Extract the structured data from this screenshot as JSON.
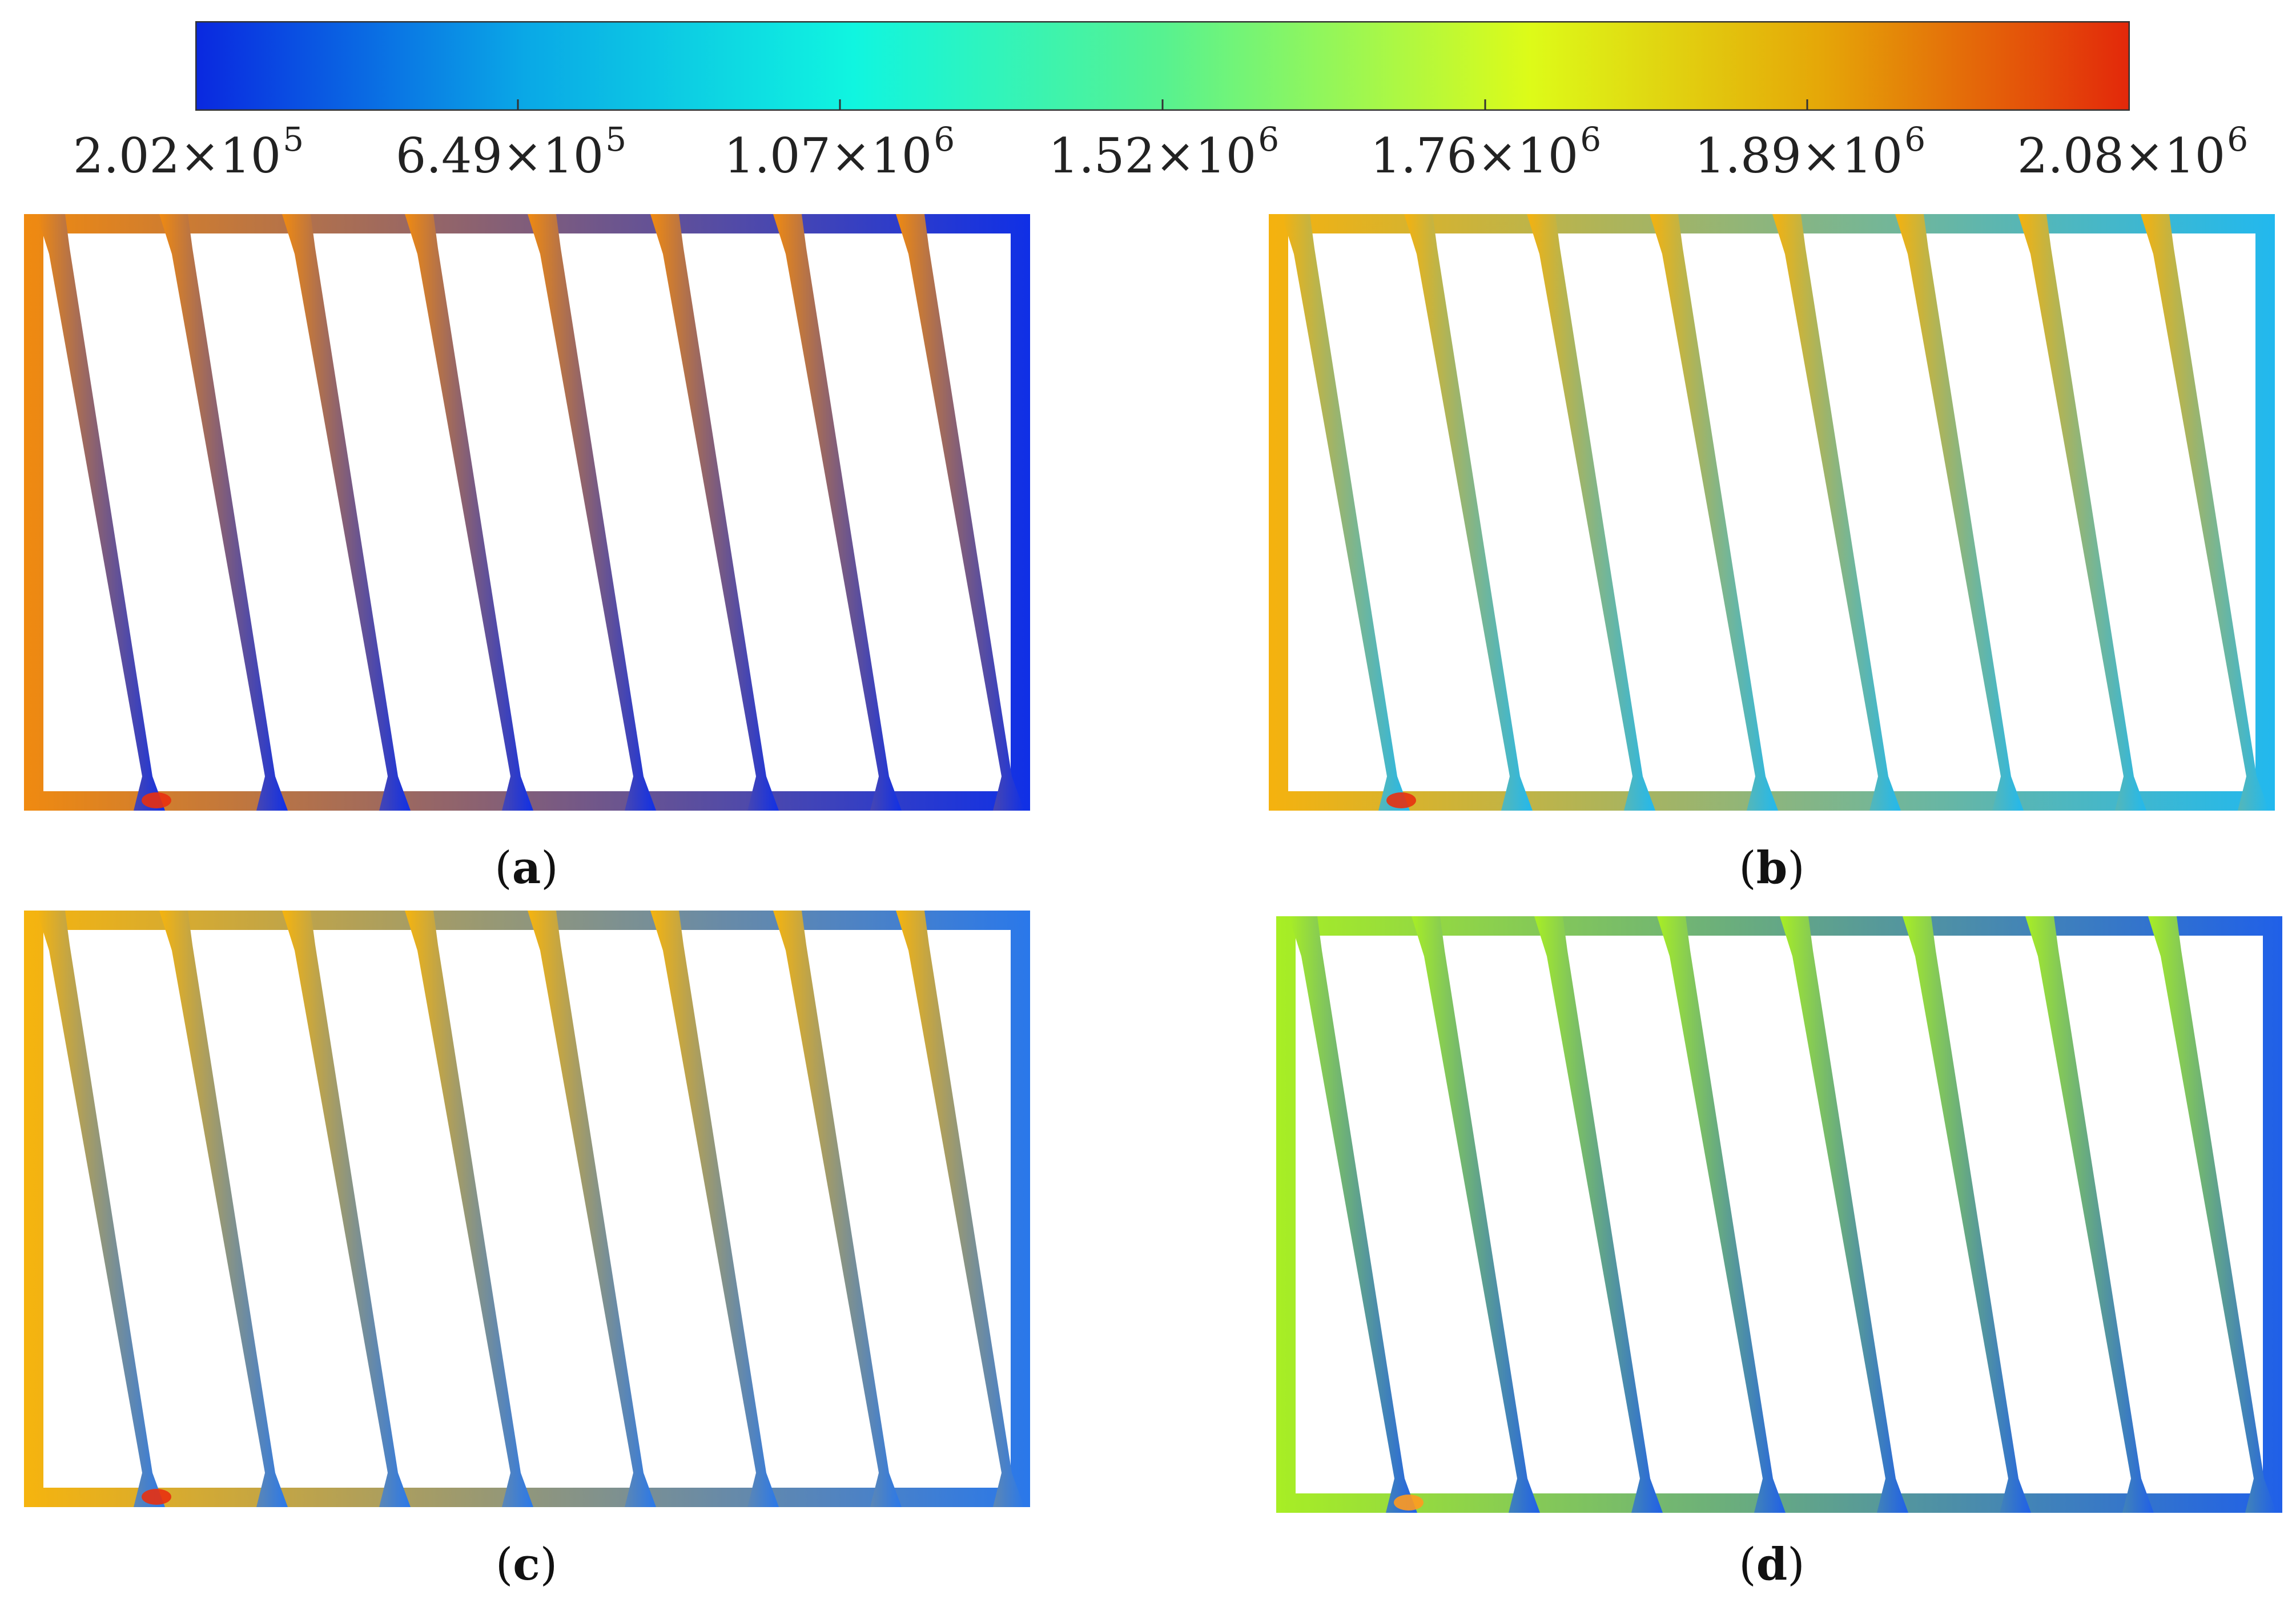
{
  "colorbar": {
    "colors": [
      "#0a28e0",
      "#0aa8e6",
      "#10f5e0",
      "#57f290",
      "#ddfb18",
      "#e5a708",
      "#e3280a"
    ],
    "ticks": [
      {
        "mantissa": "2.02",
        "times": "×10",
        "exp": "5"
      },
      {
        "mantissa": "6.49",
        "times": "×10",
        "exp": "5"
      },
      {
        "mantissa": "1.07",
        "times": "×10",
        "exp": "6"
      },
      {
        "mantissa": "1.52",
        "times": "×10",
        "exp": "6"
      },
      {
        "mantissa": "1.76",
        "times": "×10",
        "exp": "6"
      },
      {
        "mantissa": "1.89",
        "times": "×10",
        "exp": "6"
      },
      {
        "mantissa": "2.08",
        "times": "×10",
        "exp": "6"
      }
    ]
  },
  "panels": [
    {
      "id": "a",
      "label_open": "(",
      "label_letter": "a",
      "label_close": ")",
      "start_color": "#f08a10",
      "end_color": "#1030e6",
      "hot_color": "#e83010"
    },
    {
      "id": "b",
      "label_open": "(",
      "label_letter": "b",
      "label_close": ")",
      "start_color": "#f5b20e",
      "end_color": "#22b8ee",
      "hot_color": "#e83010"
    },
    {
      "id": "c",
      "label_open": "(",
      "label_letter": "c",
      "label_close": ")",
      "start_color": "#f6b40e",
      "end_color": "#2a78ea",
      "hot_color": "#e83010"
    },
    {
      "id": "d",
      "label_open": "(",
      "label_letter": "d",
      "label_close": ")",
      "start_color": "#a8ee24",
      "end_color": "#2060e8",
      "hot_color": "#ff9a20"
    }
  ]
}
